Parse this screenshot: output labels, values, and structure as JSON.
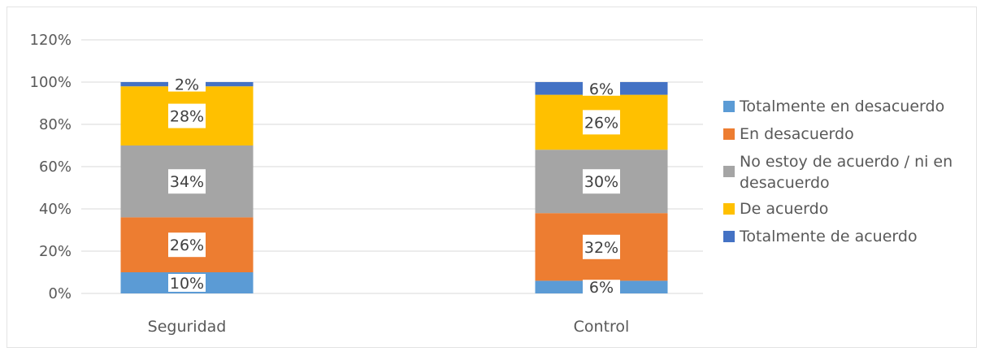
{
  "chart_data": {
    "type": "bar",
    "stacked": true,
    "categories": [
      "Seguridad",
      "Control"
    ],
    "ylim": [
      0,
      120
    ],
    "yticks": [
      "0%",
      "20%",
      "40%",
      "60%",
      "80%",
      "100%",
      "120%"
    ],
    "grid": true,
    "legend_position": "right",
    "series": [
      {
        "name": "Totalmente en desacuerdo",
        "color": "#5b9bd5",
        "values": [
          10,
          6
        ],
        "labels": [
          "10%",
          "6%"
        ]
      },
      {
        "name": "En desacuerdo",
        "color": "#ed7d31",
        "values": [
          26,
          32
        ],
        "labels": [
          "26%",
          "32%"
        ]
      },
      {
        "name": "No estoy de acuerdo / ni en desacuerdo",
        "legend_lines": [
          "No estoy de acuerdo / ni en",
          "desacuerdo"
        ],
        "color": "#a5a5a5",
        "values": [
          34,
          30
        ],
        "labels": [
          "34%",
          "30%"
        ]
      },
      {
        "name": "De acuerdo",
        "color": "#ffc000",
        "values": [
          28,
          26
        ],
        "labels": [
          "28%",
          "26%"
        ]
      },
      {
        "name": "Totalmente de acuerdo",
        "color": "#4472c4",
        "values": [
          2,
          6
        ],
        "labels": [
          "2%",
          "6%"
        ]
      }
    ]
  }
}
